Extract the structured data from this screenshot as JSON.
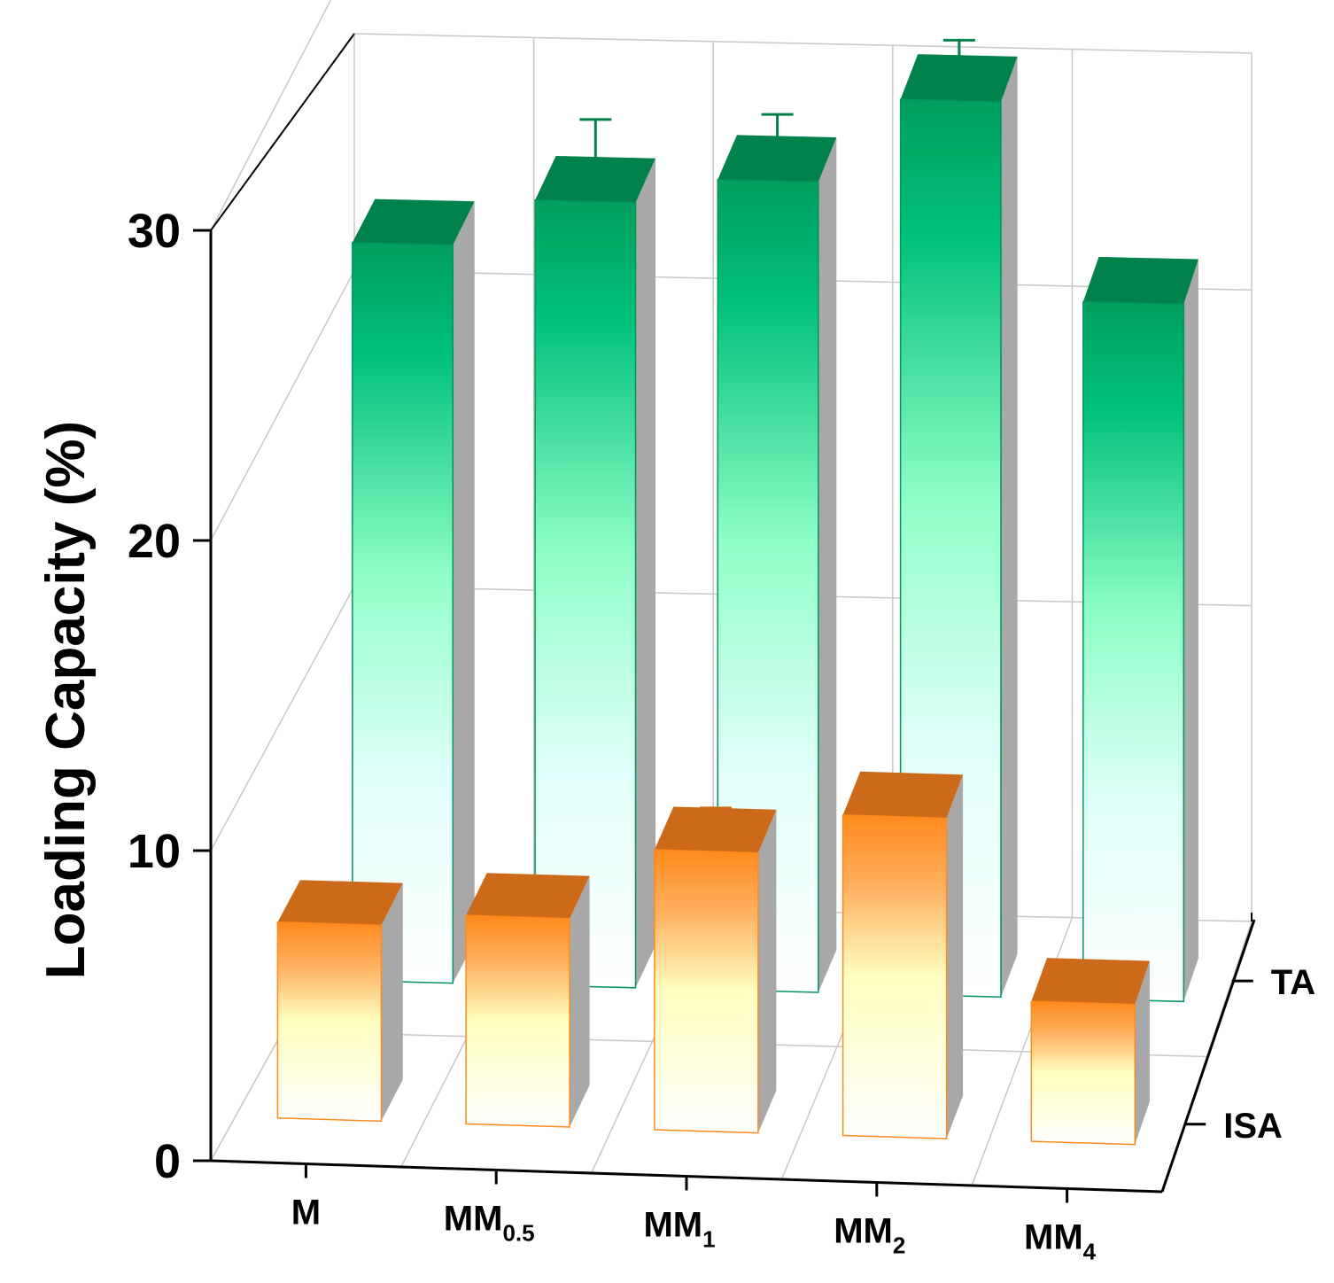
{
  "chart_data": {
    "type": "bar",
    "style": "3d-grouped",
    "ylabel": "Loading Capacity (%)",
    "ylim": [
      0,
      30
    ],
    "yticks": [
      "0",
      "10",
      "20",
      "30"
    ],
    "categories": [
      {
        "base": "MM",
        "sub": "",
        "full": "M"
      },
      {
        "base": "MM",
        "sub": "0.5",
        "full": "MM0.5"
      },
      {
        "base": "MM",
        "sub": "1",
        "full": "MM1"
      },
      {
        "base": "MM",
        "sub": "2",
        "full": "MM2"
      },
      {
        "base": "MM",
        "sub": "4",
        "full": "MM4"
      }
    ],
    "series": [
      {
        "name": "TA",
        "values": [
          23.5,
          25.0,
          25.8,
          28.5,
          22.2
        ],
        "errors": [
          0.4,
          1.9,
          1.4,
          1.2,
          0.4
        ],
        "color": "#00a86b"
      },
      {
        "name": "ISA",
        "values": [
          6.3,
          6.7,
          9.0,
          10.3,
          4.5
        ],
        "errors": [
          0.5,
          0.6,
          0.7,
          0.3,
          0.6
        ],
        "color": "#ff8c1a"
      }
    ],
    "grid": true
  }
}
